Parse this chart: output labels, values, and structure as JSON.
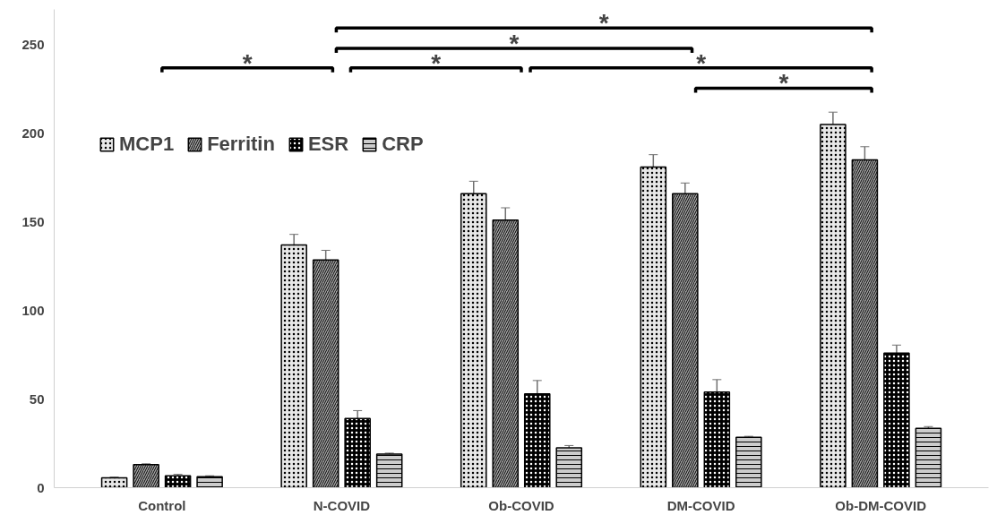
{
  "chart_data": {
    "type": "bar",
    "categories": [
      "Control",
      "N-COVID",
      "Ob-COVID",
      "DM-COVID",
      "Ob-DM-COVID"
    ],
    "series": [
      {
        "name": "MCP1",
        "color": "#e8e8e8",
        "values": [
          5.5,
          137,
          166,
          181,
          205
        ],
        "errors": [
          0.5,
          6,
          7,
          7,
          7
        ]
      },
      {
        "name": "Ferritin",
        "color": "#a6a6a6",
        "values": [
          13,
          128.5,
          151,
          166,
          185
        ],
        "errors": [
          0.5,
          5.5,
          7,
          6,
          7.5
        ]
      },
      {
        "name": "ESR",
        "color": "#000000",
        "values": [
          6.7,
          39,
          53,
          54,
          76
        ],
        "errors": [
          0.8,
          4.5,
          7.5,
          7,
          4.5
        ]
      },
      {
        "name": "CRP",
        "color": "#cccccc",
        "values": [
          6.2,
          19,
          22.5,
          28.5,
          33.5
        ],
        "errors": [
          0.5,
          0.5,
          1.3,
          0.5,
          1
        ]
      }
    ],
    "ylim": [
      0,
      270
    ],
    "yticks": [
      0,
      50,
      100,
      150,
      200,
      250
    ],
    "grid": false,
    "legend": "top left",
    "annotations": [
      "*",
      "*",
      "*",
      "*",
      "*",
      "*"
    ]
  }
}
